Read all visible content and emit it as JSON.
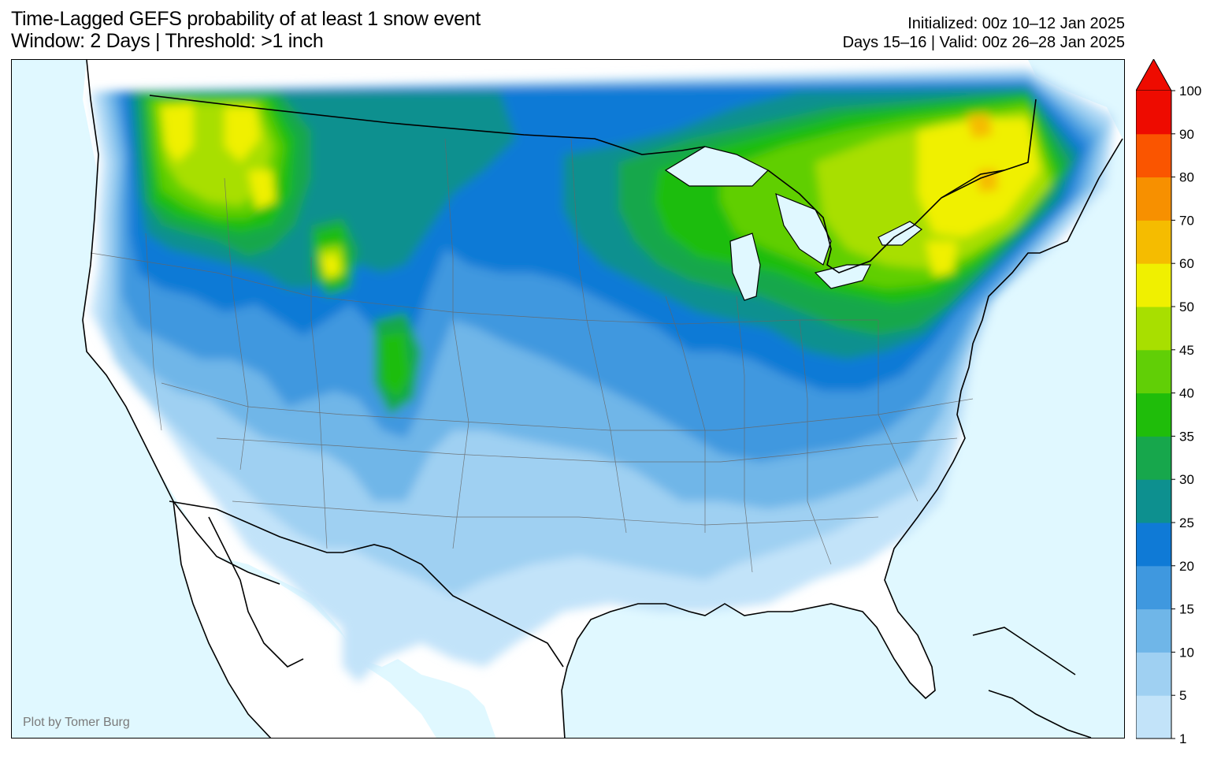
{
  "title": {
    "line1": "Time-Lagged GEFS probability of at least 1 snow event",
    "line2": "Window: 2 Days | Threshold: >1 inch"
  },
  "meta": {
    "initialized": "Initialized: 00z 10–12 Jan 2025",
    "valid": "Days 15–16 | Valid: 00z 26–28 Jan 2025"
  },
  "credit": "Plot by Tomer Burg",
  "legend": {
    "levels": [
      1,
      5,
      10,
      15,
      20,
      25,
      30,
      35,
      40,
      45,
      50,
      60,
      70,
      80,
      90,
      100
    ],
    "labels": [
      "1",
      "5",
      "10",
      "15",
      "20",
      "25",
      "30",
      "35",
      "40",
      "45",
      "50",
      "60",
      "70",
      "80",
      "90",
      "100"
    ],
    "colors": [
      "#c2e3f9",
      "#9fd0f2",
      "#6fb6e8",
      "#3f98df",
      "#0f7ad6",
      "#0d908f",
      "#17a74c",
      "#1fbd0a",
      "#61cf06",
      "#a8df00",
      "#f0f000",
      "#f5bc00",
      "#f79000",
      "#fa5500",
      "#ee0b00"
    ],
    "extend_color": "#ee0b00"
  },
  "map": {
    "ocean_color": "#e0f8ff",
    "land_color": "#ffffff"
  }
}
